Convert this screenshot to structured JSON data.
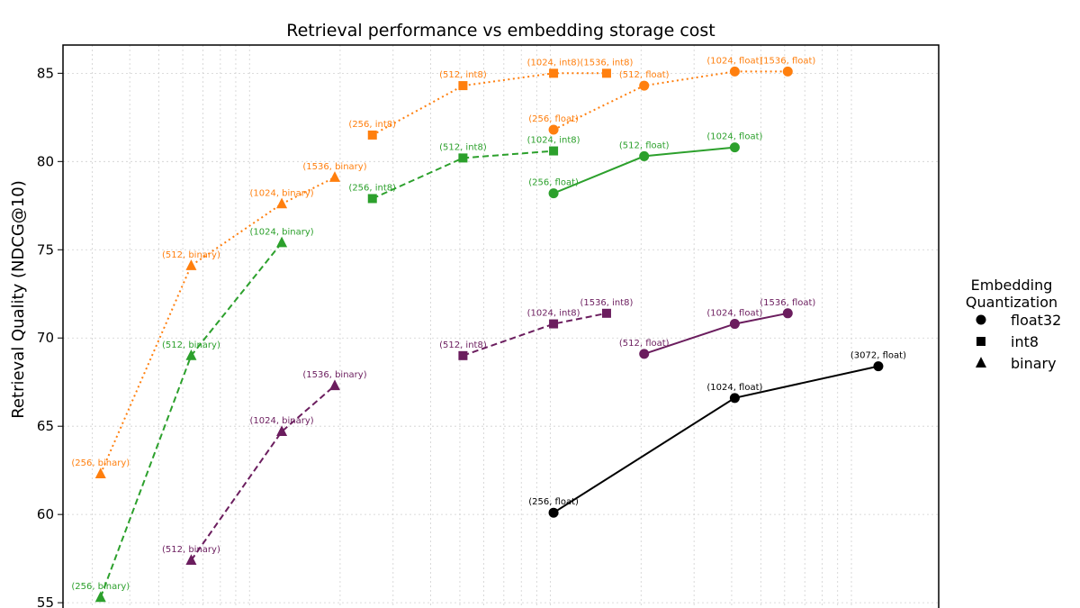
{
  "chart_data": {
    "type": "line",
    "title": "Retrieval performance vs embedding storage cost",
    "xlabel": "",
    "ylabel": "Retrieval Quality (NDCG@10)",
    "xscale": "log",
    "x_ticks_labeled": false,
    "ylim": [
      54.7,
      86.6
    ],
    "yticks": [
      55,
      60,
      65,
      70,
      75,
      80,
      85
    ],
    "grid": true,
    "legend": {
      "title": "Embedding\nQuantization",
      "placement": "right",
      "entries": [
        {
          "label": "float32",
          "marker": "circle"
        },
        {
          "label": "int8",
          "marker": "square"
        },
        {
          "label": "binary",
          "marker": "triangle"
        }
      ]
    },
    "colors": {
      "orange": "#ff7f0e",
      "green": "#2ca02c",
      "purple": "#6b1d5e",
      "black": "#000000"
    },
    "series": [
      {
        "color": "orange",
        "linestyle": "dotted",
        "marker": "triangle",
        "points": [
          {
            "x": 32,
            "y": 62.3,
            "label": "(256, binary)"
          },
          {
            "x": 64,
            "y": 74.1,
            "label": "(512, binary)"
          },
          {
            "x": 128,
            "y": 77.6,
            "label": "(1024, binary)"
          },
          {
            "x": 192,
            "y": 79.1,
            "label": "(1536, binary)"
          }
        ]
      },
      {
        "color": "orange",
        "linestyle": "dotted",
        "marker": "square",
        "points": [
          {
            "x": 256,
            "y": 81.5,
            "label": "(256, int8)"
          },
          {
            "x": 512,
            "y": 84.3,
            "label": "(512, int8)"
          },
          {
            "x": 1024,
            "y": 85.0,
            "label": "(1024, int8)"
          },
          {
            "x": 1536,
            "y": 85.0,
            "label": "(1536, int8)"
          }
        ]
      },
      {
        "color": "orange",
        "linestyle": "dotted",
        "marker": "circle",
        "points": [
          {
            "x": 1024,
            "y": 81.8,
            "label": "(256, float)"
          },
          {
            "x": 2048,
            "y": 84.3,
            "label": "(512, float)"
          },
          {
            "x": 4096,
            "y": 85.1,
            "label": "(1024, float)"
          },
          {
            "x": 6144,
            "y": 85.1,
            "label": "(1536, float)"
          }
        ]
      },
      {
        "color": "green",
        "linestyle": "dashed",
        "marker": "triangle",
        "points": [
          {
            "x": 32,
            "y": 55.3,
            "label": "(256, binary)"
          },
          {
            "x": 64,
            "y": 69.0,
            "label": "(512, binary)"
          },
          {
            "x": 128,
            "y": 75.4,
            "label": "(1024, binary)"
          }
        ]
      },
      {
        "color": "green",
        "linestyle": "dashed",
        "marker": "square",
        "points": [
          {
            "x": 256,
            "y": 77.9,
            "label": "(256, int8)"
          },
          {
            "x": 512,
            "y": 80.2,
            "label": "(512, int8)"
          },
          {
            "x": 1024,
            "y": 80.6,
            "label": "(1024, int8)"
          }
        ]
      },
      {
        "color": "green",
        "linestyle": "solid",
        "marker": "circle",
        "points": [
          {
            "x": 1024,
            "y": 78.2,
            "label": "(256, float)"
          },
          {
            "x": 2048,
            "y": 80.3,
            "label": "(512, float)"
          },
          {
            "x": 4096,
            "y": 80.8,
            "label": "(1024, float)"
          }
        ]
      },
      {
        "color": "purple",
        "linestyle": "dashed",
        "marker": "triangle",
        "points": [
          {
            "x": 64,
            "y": 57.4,
            "label": "(512, binary)"
          },
          {
            "x": 128,
            "y": 64.7,
            "label": "(1024, binary)"
          },
          {
            "x": 192,
            "y": 67.3,
            "label": "(1536, binary)"
          }
        ]
      },
      {
        "color": "purple",
        "linestyle": "dashed",
        "marker": "square",
        "points": [
          {
            "x": 512,
            "y": 69.0,
            "label": "(512, int8)"
          },
          {
            "x": 1024,
            "y": 70.8,
            "label": "(1024, int8)"
          },
          {
            "x": 1536,
            "y": 71.4,
            "label": "(1536, int8)"
          }
        ]
      },
      {
        "color": "purple",
        "linestyle": "solid",
        "marker": "circle",
        "points": [
          {
            "x": 2048,
            "y": 69.1,
            "label": "(512, float)"
          },
          {
            "x": 4096,
            "y": 70.8,
            "label": "(1024, float)"
          },
          {
            "x": 6144,
            "y": 71.4,
            "label": "(1536, float)"
          }
        ]
      },
      {
        "color": "black",
        "linestyle": "solid",
        "marker": "circle",
        "points": [
          {
            "x": 1024,
            "y": 60.1,
            "label": "(256, float)"
          },
          {
            "x": 4096,
            "y": 66.6,
            "label": "(1024, float)"
          },
          {
            "x": 12288,
            "y": 68.4,
            "label": "(3072, float)"
          }
        ]
      }
    ]
  }
}
